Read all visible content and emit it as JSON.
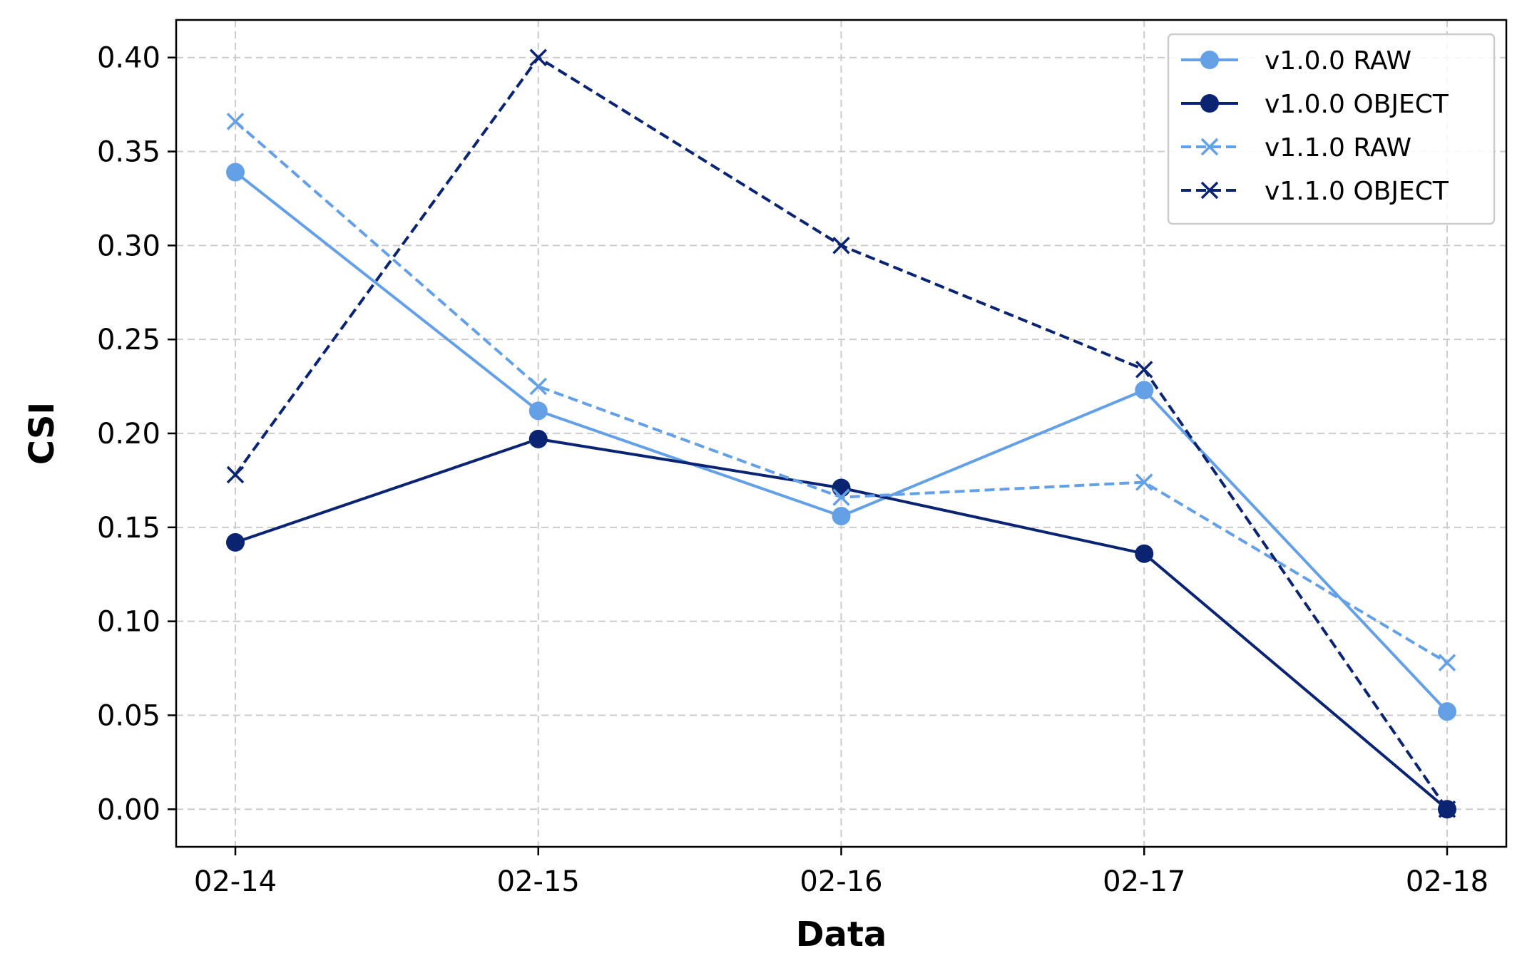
{
  "chart_data": {
    "type": "line",
    "title": "",
    "xlabel": "Data",
    "ylabel": "CSI",
    "categories": [
      "02-14",
      "02-15",
      "02-16",
      "02-17",
      "02-18"
    ],
    "ylim": [
      -0.02,
      0.42
    ],
    "yticks": [
      "0.00",
      "0.05",
      "0.10",
      "0.15",
      "0.20",
      "0.25",
      "0.30",
      "0.35",
      "0.40"
    ],
    "grid": true,
    "legend_position": "top-right",
    "series": [
      {
        "name": "v1.0.0 RAW",
        "values": [
          0.339,
          0.212,
          0.156,
          0.223,
          0.052
        ],
        "color": "#64a0e6",
        "dash": "solid",
        "marker": "circle"
      },
      {
        "name": "v1.0.0 OBJECT",
        "values": [
          0.142,
          0.197,
          0.171,
          0.136,
          0.0
        ],
        "color": "#0a2472",
        "dash": "solid",
        "marker": "circle"
      },
      {
        "name": "v1.1.0 RAW",
        "values": [
          0.366,
          0.225,
          0.166,
          0.174,
          0.078
        ],
        "color": "#64a0e6",
        "dash": "dashed",
        "marker": "x"
      },
      {
        "name": "v1.1.0 OBJECT",
        "values": [
          0.178,
          0.4,
          0.3,
          0.234,
          0.0
        ],
        "color": "#0a2472",
        "dash": "dashed",
        "marker": "x"
      }
    ]
  }
}
